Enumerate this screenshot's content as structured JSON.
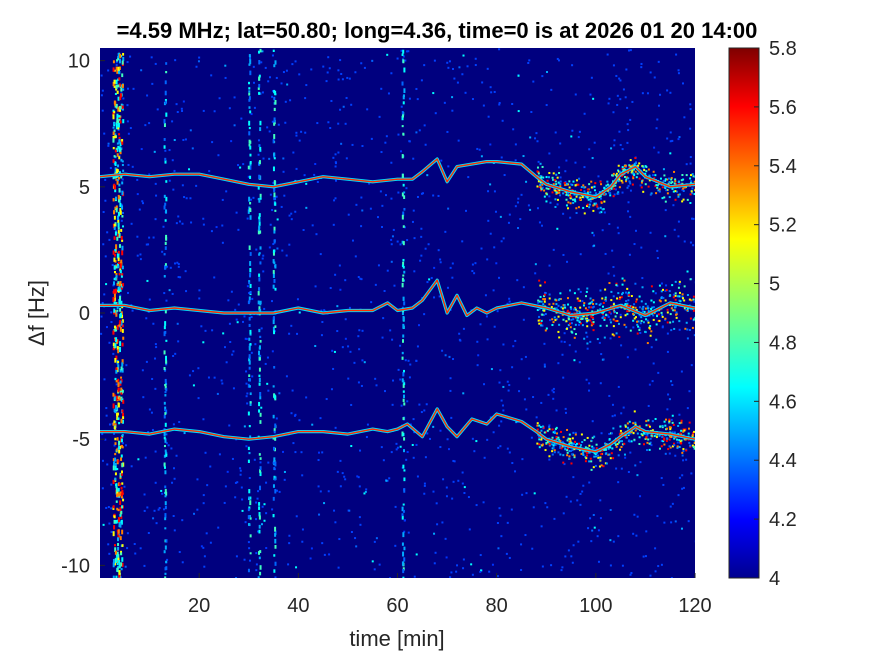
{
  "chart_data": {
    "type": "heatmap",
    "title": "=4.59 MHz;  lat=50.80; long=4.36, time=0 is at 2026 01 20 14:00",
    "xlabel": "time [min]",
    "ylabel": "Δf [Hz]",
    "xlim": [
      0,
      120
    ],
    "ylim": [
      -10.5,
      10.5
    ],
    "x_ticks": [
      20,
      40,
      60,
      80,
      100,
      120
    ],
    "x_tick_labels": [
      "20",
      "40",
      "60",
      "80",
      "100",
      "120"
    ],
    "y_ticks": [
      -10,
      -5,
      0,
      5,
      10
    ],
    "y_tick_labels": [
      "-10",
      "-5",
      "0",
      "5",
      "10"
    ],
    "colormap": "jet",
    "color_range": [
      4,
      5.8
    ],
    "colorbar_ticks": [
      4,
      4.2,
      4.4,
      4.6,
      4.8,
      5,
      5.2,
      5.4,
      5.6,
      5.8
    ],
    "colorbar_tick_labels": [
      "4",
      "4.2",
      "4.4",
      "4.6",
      "4.8",
      "5",
      "5.2",
      "5.4",
      "5.6",
      "5.8"
    ],
    "background_color": "#00007f",
    "vertical_interference_lines_min": [
      3,
      4,
      13,
      30,
      32,
      35,
      61
    ],
    "traces": [
      {
        "center_hz": 5,
        "x": [
          0,
          5,
          10,
          15,
          20,
          25,
          30,
          35,
          40,
          45,
          50,
          55,
          60,
          63,
          65,
          68,
          70,
          72,
          75,
          78,
          80,
          85,
          88,
          90,
          95,
          100,
          103,
          105,
          108,
          110,
          115,
          120
        ],
        "y": [
          5.4,
          5.5,
          5.4,
          5.5,
          5.5,
          5.3,
          5.1,
          5.0,
          5.2,
          5.4,
          5.3,
          5.2,
          5.3,
          5.3,
          5.6,
          6.1,
          5.2,
          5.8,
          5.9,
          6.0,
          6.0,
          5.9,
          5.4,
          5.1,
          4.8,
          4.6,
          5.0,
          5.5,
          5.8,
          5.4,
          5.0,
          5.1
        ]
      },
      {
        "center_hz": 0,
        "x": [
          0,
          5,
          10,
          15,
          20,
          25,
          30,
          35,
          40,
          45,
          50,
          55,
          58,
          60,
          63,
          65,
          68,
          70,
          72,
          74,
          76,
          78,
          80,
          85,
          90,
          95,
          100,
          105,
          110,
          115,
          120
        ],
        "y": [
          0.3,
          0.3,
          0.1,
          0.2,
          0.1,
          0.0,
          0.0,
          0.0,
          0.2,
          0.0,
          0.1,
          0.1,
          0.4,
          0.1,
          0.2,
          0.5,
          1.3,
          0.0,
          0.7,
          -0.1,
          0.2,
          0.0,
          0.2,
          0.4,
          0.2,
          -0.1,
          0.0,
          0.3,
          -0.1,
          0.4,
          0.2
        ]
      },
      {
        "center_hz": -5,
        "x": [
          0,
          5,
          10,
          15,
          20,
          25,
          30,
          35,
          40,
          45,
          50,
          55,
          58,
          60,
          62,
          65,
          68,
          70,
          72,
          75,
          78,
          80,
          85,
          88,
          90,
          95,
          100,
          103,
          105,
          108,
          110,
          115,
          120
        ],
        "y": [
          -4.7,
          -4.7,
          -4.8,
          -4.6,
          -4.7,
          -4.9,
          -5.0,
          -4.9,
          -4.7,
          -4.7,
          -4.8,
          -4.6,
          -4.7,
          -4.6,
          -4.4,
          -4.9,
          -3.8,
          -4.5,
          -4.9,
          -4.2,
          -4.4,
          -4.0,
          -4.3,
          -4.7,
          -5.0,
          -5.3,
          -5.5,
          -5.2,
          -4.9,
          -4.5,
          -4.7,
          -4.8,
          -5.0
        ]
      }
    ]
  }
}
